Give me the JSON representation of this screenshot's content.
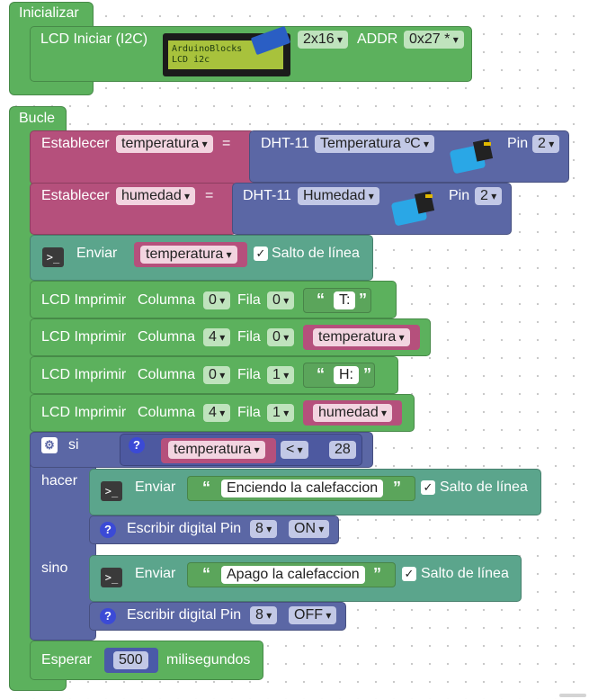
{
  "init": {
    "header": "Inicializar",
    "lcd_label": "LCD Iniciar (I2C)",
    "lcd_image_line1": "ArduinoBlocks",
    "lcd_image_line2": "LCD i2c",
    "size": "2x16",
    "addr_label": "ADDR",
    "addr_value": "0x27 *"
  },
  "loop": {
    "header": "Bucle",
    "set_label": "Establecer",
    "equals": "=",
    "dht_label": "DHT-11",
    "pin_label": "Pin",
    "set_temp": {
      "var": "temperatura",
      "measure": "Temperatura ºC",
      "pin": "2"
    },
    "set_hum": {
      "var": "humedad",
      "measure": "Humedad",
      "pin": "2"
    },
    "send_label": "Enviar",
    "newline_label": "Salto de línea",
    "send_var": "temperatura",
    "lcd_print_label": "LCD Imprimir",
    "column_label": "Columna",
    "row_label": "Fila",
    "prints": [
      {
        "col": "0",
        "row": "0",
        "text": "T:"
      },
      {
        "col": "4",
        "row": "0",
        "var": "temperatura"
      },
      {
        "col": "0",
        "row": "1",
        "text": "H:"
      },
      {
        "col": "4",
        "row": "1",
        "var": "humedad"
      }
    ],
    "if": {
      "si_label": "si",
      "hacer_label": "hacer",
      "sino_label": "sino",
      "cond_var": "temperatura",
      "cond_op": "<",
      "cond_value": "28",
      "then_send_text": "Enciendo la calefaccion",
      "else_send_text": "Apago la calefaccion",
      "digital_label": "Escribir digital Pin",
      "then_pin": "8",
      "then_state": "ON",
      "else_pin": "8",
      "else_state": "OFF"
    },
    "wait_label": "Esperar",
    "wait_value": "500",
    "wait_unit": "milisegundos"
  }
}
